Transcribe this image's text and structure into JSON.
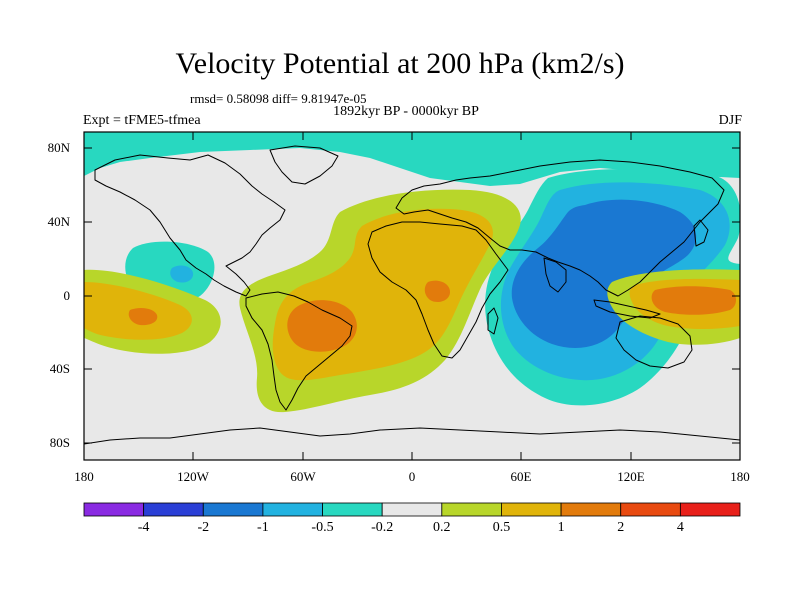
{
  "title": "Velocity Potential at 200 hPa (km2/s)",
  "stats_line": "rmsd= 0.58098  diff= 9.81947e-05",
  "period": "1892kyr BP - 0000kyr BP",
  "experiment": "Expt = tFME5-tfmea",
  "season": "DJF",
  "lat_ticks": [
    "80N",
    "40N",
    "0",
    "40S",
    "80S"
  ],
  "lon_ticks": [
    "180",
    "120W",
    "60W",
    "0",
    "60E",
    "120E",
    "180"
  ],
  "colorbar": {
    "labels": [
      "-4",
      "-2",
      "-1",
      "-0.5",
      "-0.2",
      "0.2",
      "0.5",
      "1",
      "2",
      "4"
    ],
    "colors": [
      "#8a2be2",
      "#2a3fd6",
      "#1a78d2",
      "#22b2e0",
      "#28d8c0",
      "#e8e8e8",
      "#b8d62a",
      "#e0b40a",
      "#e27b0c",
      "#e84a10",
      "#e8201a"
    ]
  }
}
